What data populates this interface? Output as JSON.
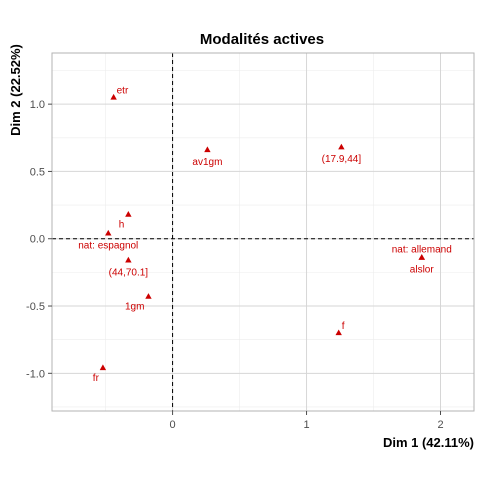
{
  "chart_data": {
    "type": "scatter",
    "title": "Modalités actives",
    "xlabel": "Dim 1 (42.11%)",
    "ylabel": "Dim 2 (22.52%)",
    "xlim": [
      -0.9,
      2.25
    ],
    "ylim": [
      -1.28,
      1.38
    ],
    "x_ticks": [
      {
        "value": 0,
        "label": "0"
      },
      {
        "value": 1,
        "label": "1"
      },
      {
        "value": 2,
        "label": "2"
      }
    ],
    "y_ticks": [
      {
        "value": -1.0,
        "label": "-1.0"
      },
      {
        "value": -0.5,
        "label": "-0.5"
      },
      {
        "value": 0.0,
        "label": "0.0"
      },
      {
        "value": 0.5,
        "label": "0.5"
      },
      {
        "value": 1.0,
        "label": "1.0"
      }
    ],
    "x_minor_ticks": [
      -0.5,
      0.5,
      1.5
    ],
    "y_minor_ticks": [
      -1.25,
      -0.75,
      -0.25,
      0.25,
      0.75,
      1.25
    ],
    "reference_lines": {
      "x": 0,
      "y": 0,
      "style": "dashed"
    },
    "grid": true,
    "marker": "triangle",
    "color": "#cc0000",
    "points": [
      {
        "label": "etr",
        "x": -0.44,
        "y": 1.05,
        "anchor": "right-above"
      },
      {
        "label": "av1gm",
        "x": 0.26,
        "y": 0.66,
        "anchor": "below"
      },
      {
        "label": "(17.9,44]",
        "x": 1.26,
        "y": 0.68,
        "anchor": "below"
      },
      {
        "label": "h",
        "x": -0.33,
        "y": 0.18,
        "anchor": "left-below"
      },
      {
        "label": "nat: espagnol",
        "x": -0.48,
        "y": 0.04,
        "anchor": "below"
      },
      {
        "label": "(44,70.1]",
        "x": -0.33,
        "y": -0.16,
        "anchor": "below"
      },
      {
        "label": "nat: allemand",
        "x": 1.86,
        "y": -0.14,
        "anchor": "above"
      },
      {
        "label": "alslor",
        "x": 1.86,
        "y": -0.14,
        "anchor": "below"
      },
      {
        "label": "1gm",
        "x": -0.18,
        "y": -0.43,
        "anchor": "left-below"
      },
      {
        "label": "f",
        "x": 1.24,
        "y": -0.7,
        "anchor": "right-above"
      },
      {
        "label": "fr",
        "x": -0.52,
        "y": -0.96,
        "anchor": "left-below"
      }
    ]
  }
}
